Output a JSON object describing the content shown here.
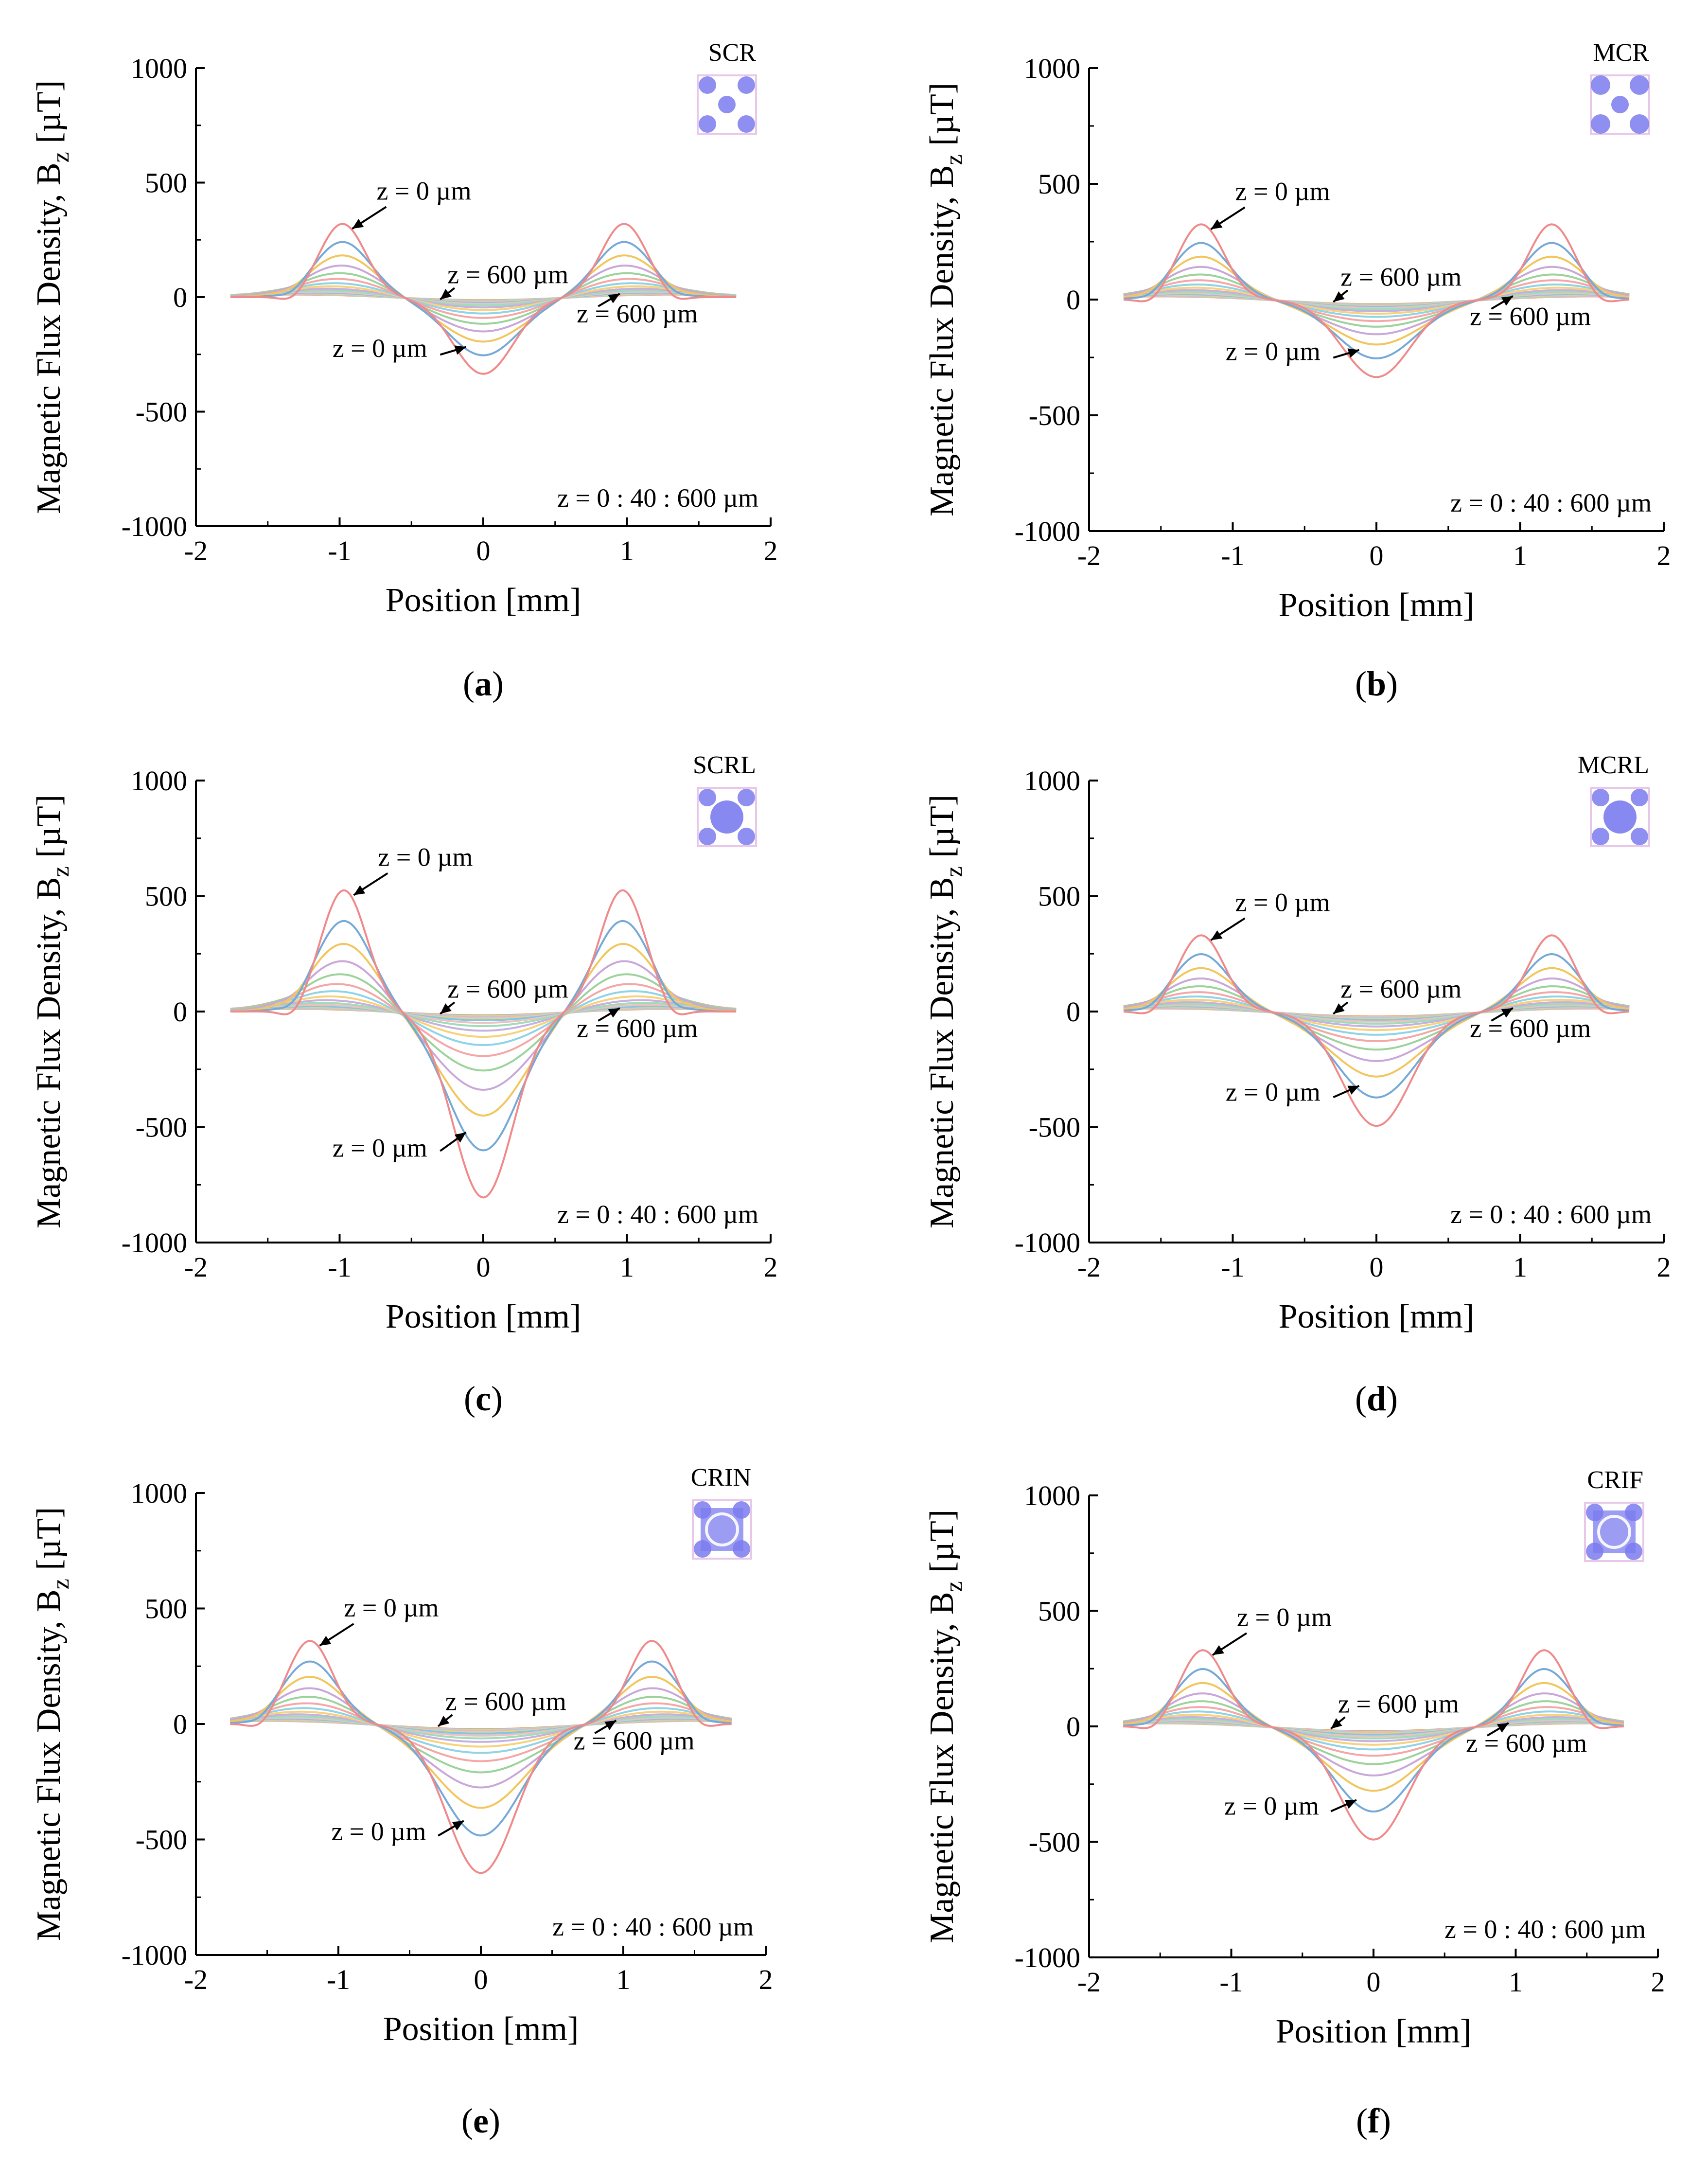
{
  "figure": {
    "panel_labels": [
      "a",
      "b",
      "c",
      "d",
      "e",
      "f"
    ]
  },
  "colors": {
    "series": [
      "#f08a8a",
      "#74a9d8",
      "#f2c65c",
      "#c9a8d9",
      "#9bd39b",
      "#f5a7a7",
      "#8fd3e8",
      "#f7d27a",
      "#c6b0e0",
      "#a0dcb8",
      "#f0c0c0",
      "#7fc9e8",
      "#e8d08a",
      "#d0b8e8",
      "#b0e0c0",
      "#f0a070"
    ],
    "inset": "#7b7bef",
    "axis": "#000000",
    "arrow": "#000000"
  },
  "chart_data": [
    {
      "type": "line",
      "panel": "a",
      "title": "SCR",
      "xlabel": "Position [mm]",
      "ylabel": "Magnetic Flux Density, B",
      "ylabel_sub": "z",
      "ylabel_unit": " [µT]",
      "xlim": [
        -2,
        2
      ],
      "ylim": [
        -1000,
        1000
      ],
      "xticks": [
        "-2",
        "-1",
        "0",
        "1",
        "2"
      ],
      "yticks": [
        "1000",
        "500",
        "0",
        "-500",
        "-1000"
      ],
      "z_range_label": "z = 0 : 40 : 600 µm",
      "series_count": 16,
      "peak_position": 0.98,
      "peak_value_z0": 320,
      "center_value_z0": -335,
      "annotations": [
        "z = 0 µm",
        "z = 600 µm",
        "z = 600 µm",
        "z = 0 µm"
      ],
      "inset": "SCR"
    },
    {
      "type": "line",
      "panel": "b",
      "title": "MCR",
      "xlabel": "Position [mm]",
      "ylabel": "Magnetic Flux Density, B",
      "ylabel_sub": "z",
      "ylabel_unit": " [µT]",
      "xlim": [
        -2,
        2
      ],
      "ylim": [
        -1000,
        1000
      ],
      "xticks": [
        "-2",
        "-1",
        "0",
        "1",
        "2"
      ],
      "yticks": [
        "1000",
        "500",
        "0",
        "-500",
        "-1000"
      ],
      "z_range_label": "z = 0 : 40 : 600 µm",
      "series_count": 16,
      "peak_position": 1.22,
      "peak_value_z0": 325,
      "center_value_z0": -335,
      "annotations": [
        "z = 0 µm",
        "z = 600 µm",
        "z = 600 µm",
        "z = 0 µm"
      ],
      "inset": "MCR"
    },
    {
      "type": "line",
      "panel": "c",
      "title": "SCRL",
      "xlabel": "Position [mm]",
      "ylabel": "Magnetic Flux Density, B",
      "ylabel_sub": "z",
      "ylabel_unit": " [µT]",
      "xlim": [
        -2,
        2
      ],
      "ylim": [
        -1000,
        1000
      ],
      "xticks": [
        "-2",
        "-1",
        "0",
        "1",
        "2"
      ],
      "yticks": [
        "1000",
        "500",
        "0",
        "-500",
        "-1000"
      ],
      "z_range_label": "z = 0 : 40 : 600 µm",
      "series_count": 16,
      "peak_position": 0.97,
      "peak_value_z0": 525,
      "center_value_z0": -805,
      "annotations": [
        "z = 0 µm",
        "z = 600 µm",
        "z = 600 µm",
        "z = 0 µm"
      ],
      "inset": "SCRL"
    },
    {
      "type": "line",
      "panel": "d",
      "title": "MCRL",
      "xlabel": "Position [mm]",
      "ylabel": "Magnetic Flux Density, B",
      "ylabel_sub": "z",
      "ylabel_unit": " [µT]",
      "xlim": [
        -2,
        2
      ],
      "ylim": [
        -1000,
        1000
      ],
      "xticks": [
        "-2",
        "-1",
        "0",
        "1",
        "2"
      ],
      "yticks": [
        "1000",
        "500",
        "0",
        "-500",
        "-1000"
      ],
      "z_range_label": "z = 0 : 40 : 600 µm",
      "series_count": 16,
      "peak_position": 1.22,
      "peak_value_z0": 330,
      "center_value_z0": -495,
      "annotations": [
        "z = 0 µm",
        "z = 600 µm",
        "z = 600 µm",
        "z = 0 µm"
      ],
      "inset": "MCRL"
    },
    {
      "type": "line",
      "panel": "e",
      "title": "CRIN",
      "xlabel": "Position [mm]",
      "ylabel": "Magnetic Flux Density, B",
      "ylabel_sub": "z",
      "ylabel_unit": " [µT]",
      "xlim": [
        -2,
        2
      ],
      "ylim": [
        -1000,
        1000
      ],
      "xticks": [
        "-2",
        "-1",
        "0",
        "1",
        "2"
      ],
      "yticks": [
        "1000",
        "500",
        "0",
        "-500",
        "-1000"
      ],
      "z_range_label": "z = 0 : 40 : 600 µm",
      "series_count": 16,
      "peak_position": 1.2,
      "peak_value_z0": 360,
      "center_value_z0": -645,
      "annotations": [
        "z = 0 µm",
        "z = 600 µm",
        "z = 600 µm",
        "z = 0 µm"
      ],
      "inset": "CRIN"
    },
    {
      "type": "line",
      "panel": "f",
      "title": "CRIF",
      "xlabel": "Position [mm]",
      "ylabel": "Magnetic Flux Density, B",
      "ylabel_sub": "z",
      "ylabel_unit": " [µT]",
      "xlim": [
        -2,
        2
      ],
      "ylim": [
        -1000,
        1000
      ],
      "xticks": [
        "-2",
        "-1",
        "0",
        "1",
        "2"
      ],
      "yticks": [
        "1000",
        "500",
        "0",
        "-500",
        "-1000"
      ],
      "z_range_label": "z = 0 : 40 : 600 µm",
      "series_count": 16,
      "peak_position": 1.2,
      "peak_value_z0": 330,
      "center_value_z0": -490,
      "annotations": [
        "z = 0 µm",
        "z = 600 µm",
        "z = 600 µm",
        "z = 0 µm"
      ],
      "inset": "CRIF"
    }
  ]
}
